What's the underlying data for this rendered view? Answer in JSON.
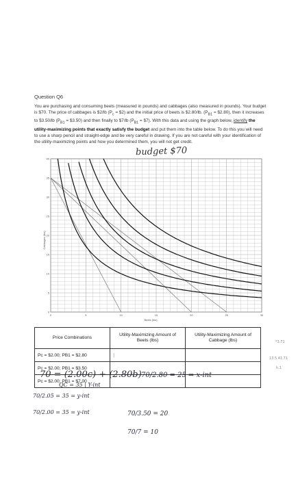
{
  "question": {
    "title": "Question Q6",
    "sentences": [
      "You are purchasing and consuming beets (measured in pounds) and cabbages (also measured in pounds). Your budget is $70. The price of cabbages is $2/lb (P",
      " = $2) and the initial price of beets is $2.80/lb. (P",
      " = $2.80), then it increases to $3.50/lb (P",
      " = $3.50) and then finally to $7/lb (P",
      " = $7). With this data and using the graph below, "
    ],
    "identify_word": "identify",
    "bold_part_1": " the utility-maximizing points that exactly satisfy the budget",
    "rest_1": " and put them into the table below. To do this you will need to use a sharp pencil and straight-edge and be very careful in drawing. If you are not careful with your identification of the utility-maximizing points and how you determined them, you will not get credit.",
    "sub_c": "c",
    "sub_b": "B1"
  },
  "handwritten": {
    "budget_note": "budget $70",
    "eq_main": "70 = (2.00c) + (2.80b)",
    "eq_ratio": "70/2.80 = 25 ⇒ x-int",
    "eq_sub": "QC = 35 | Y-int",
    "eq_left1": "70/2.05 = 35 = y-int",
    "eq_left2": "70/2.00 = 35 = y-int",
    "eq_right2": "70/3.50 = 20",
    "eq_right3": "70/7 = 10",
    "cell_mark": "|",
    "margin_a": "*3.71",
    "margin_b": "13.5  41.71",
    "margin_c": "h.1"
  },
  "graph": {
    "x_ticks": [
      "0",
      "5",
      "10",
      "15",
      "20",
      "25",
      "30"
    ],
    "y_ticks": [
      "0",
      "5",
      "10",
      "15",
      "20",
      "25",
      "30",
      "35",
      "40"
    ],
    "x_label": "Beets (lbs)",
    "y_label": "Cabbages (lbs)"
  },
  "chart_data": {
    "type": "line",
    "x_range": [
      0,
      30
    ],
    "y_range": [
      0,
      40
    ],
    "grid": true,
    "xlabel": "Beets (lbs)",
    "ylabel": "Cabbages (lbs)",
    "budget_lines": [
      {
        "x_intercept": 25,
        "y_intercept": 35
      },
      {
        "x_intercept": 20,
        "y_intercept": 35
      },
      {
        "x_intercept": 10,
        "y_intercept": 35
      }
    ],
    "indifference_curves": [
      {
        "k": 120
      },
      {
        "k": 175
      },
      {
        "k": 235
      },
      {
        "k": 300
      },
      {
        "k": 380
      }
    ]
  },
  "table": {
    "headers": [
      "Price Combinations",
      "Utility-Maximizing Amount of Beets (lbs)",
      "Utility-Maximizing Amount of Cabbage (lbs)"
    ],
    "rows": [
      {
        "combo": "Pc = $2.00; PB1 = $2.80",
        "beets": "",
        "cabbage": ""
      },
      {
        "combo": "Pc = $2.00; PB1 = $3.50",
        "beets": "",
        "cabbage": ""
      },
      {
        "combo": "Pc = $2.00; PB1 = $7.00",
        "beets": "",
        "cabbage": ""
      }
    ]
  }
}
